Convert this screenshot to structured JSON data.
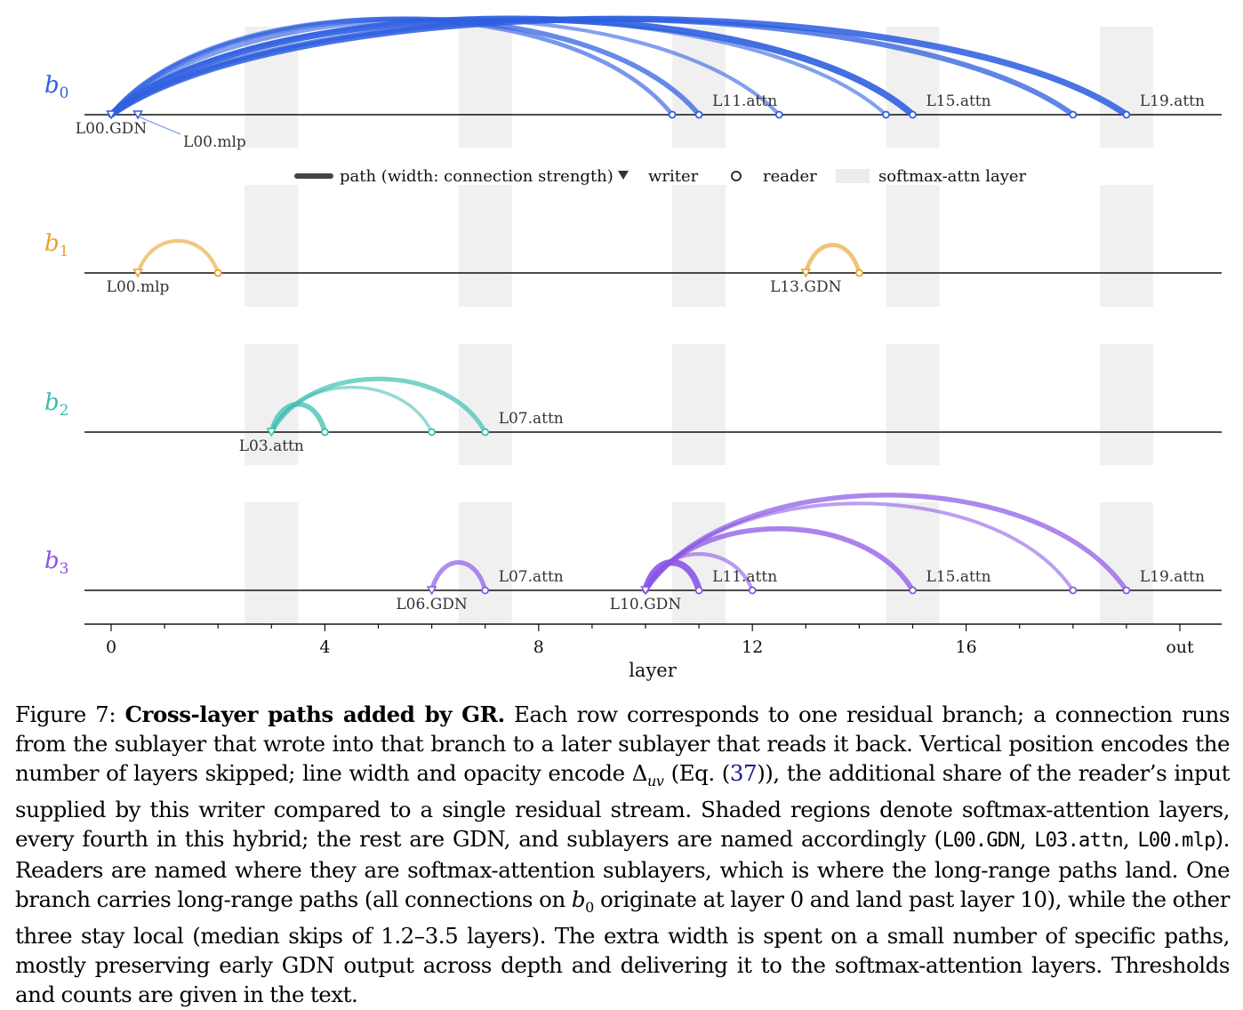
{
  "figure": {
    "legend": {
      "path": "path (width: connection strength)",
      "writer": "writer",
      "reader": "reader",
      "softmax": "softmax-attn layer"
    },
    "axis": {
      "xlabel": "layer",
      "ticks": [
        "0",
        "4",
        "8",
        "12",
        "16",
        "out"
      ],
      "tick_values": [
        0,
        4,
        8,
        12,
        16,
        20
      ]
    },
    "softmax_layers": [
      3,
      7,
      11,
      15,
      19
    ],
    "colors": {
      "b0": "#2f5fe0",
      "b1": "#e8a32c",
      "b2": "#3cbdb0",
      "b3": "#8a55e6",
      "shade": "#f0f0f0",
      "baseline": "#111111"
    }
  },
  "chart_data": {
    "type": "arc-diagram",
    "xlabel": "layer",
    "xlim": [
      0,
      20
    ],
    "rows": [
      {
        "branch": "b0",
        "base": "b",
        "sub": "0",
        "color": "#2f5fe0",
        "writers": [
          0,
          0.5
        ],
        "readers": [
          10.5,
          11,
          12.5,
          14.5,
          15,
          18,
          19
        ],
        "paths": [
          {
            "from": 0,
            "to": 10.5,
            "strength": 0.55
          },
          {
            "from": 0,
            "to": 11,
            "strength": 0.7
          },
          {
            "from": 0,
            "to": 12.5,
            "strength": 0.45
          },
          {
            "from": 0,
            "to": 14.5,
            "strength": 0.45
          },
          {
            "from": 0,
            "to": 15,
            "strength": 1.0
          },
          {
            "from": 0,
            "to": 18,
            "strength": 0.75
          },
          {
            "from": 0,
            "to": 19,
            "strength": 0.95
          }
        ],
        "labels": [
          {
            "text": "L00.GDN",
            "at": 0,
            "pos": "below"
          },
          {
            "text": "L00.mlp",
            "at": 0.5,
            "pos": "below-right"
          },
          {
            "text": "L11.attn",
            "at": 11,
            "pos": "above"
          },
          {
            "text": "L15.attn",
            "at": 15,
            "pos": "above"
          },
          {
            "text": "L19.attn",
            "at": 19,
            "pos": "above"
          }
        ]
      },
      {
        "branch": "b1",
        "base": "b",
        "sub": "1",
        "color": "#e8a32c",
        "writers": [
          0.5,
          13
        ],
        "readers": [
          2,
          14
        ],
        "paths": [
          {
            "from": 0.5,
            "to": 2,
            "strength": 0.45
          },
          {
            "from": 13,
            "to": 14,
            "strength": 0.55
          }
        ],
        "labels": [
          {
            "text": "L00.mlp",
            "at": 0.5,
            "pos": "below"
          },
          {
            "text": "L13.GDN",
            "at": 13,
            "pos": "below"
          }
        ]
      },
      {
        "branch": "b2",
        "base": "b",
        "sub": "2",
        "color": "#3cbdb0",
        "writers": [
          3
        ],
        "readers": [
          4,
          6,
          7
        ],
        "paths": [
          {
            "from": 3,
            "to": 4,
            "strength": 0.7
          },
          {
            "from": 3,
            "to": 6,
            "strength": 0.35
          },
          {
            "from": 3,
            "to": 7,
            "strength": 0.6
          }
        ],
        "labels": [
          {
            "text": "L03.attn",
            "at": 3,
            "pos": "below"
          },
          {
            "text": "L07.attn",
            "at": 7,
            "pos": "above"
          }
        ]
      },
      {
        "branch": "b3",
        "base": "b",
        "sub": "3",
        "color": "#8a55e6",
        "writers": [
          6,
          10
        ],
        "readers": [
          7,
          11,
          12,
          15,
          18,
          19
        ],
        "paths": [
          {
            "from": 6,
            "to": 7,
            "strength": 0.6
          },
          {
            "from": 10,
            "to": 11,
            "strength": 1.0
          },
          {
            "from": 10,
            "to": 12,
            "strength": 0.45
          },
          {
            "from": 10,
            "to": 15,
            "strength": 0.7
          },
          {
            "from": 10,
            "to": 18,
            "strength": 0.4
          },
          {
            "from": 10,
            "to": 19,
            "strength": 0.65
          }
        ],
        "labels": [
          {
            "text": "L06.GDN",
            "at": 6,
            "pos": "below"
          },
          {
            "text": "L07.attn",
            "at": 7,
            "pos": "above"
          },
          {
            "text": "L10.GDN",
            "at": 10,
            "pos": "below"
          },
          {
            "text": "L11.attn",
            "at": 11,
            "pos": "above"
          },
          {
            "text": "L15.attn",
            "at": 15,
            "pos": "above"
          },
          {
            "text": "L19.attn",
            "at": 19,
            "pos": "above"
          }
        ]
      }
    ]
  },
  "caption": {
    "figure_label": "Figure 7: ",
    "title": "Cross-layer paths added by GR.",
    "t1": " Each row corresponds to one residual branch; a connection runs from the sublayer that wrote into that branch to a later sublayer that reads it back. Vertical position encodes the number of layers skipped; line width and opacity encode ",
    "delta": "Δ",
    "delta_sub": "uv",
    "t2": " (Eq. (",
    "eq_ref": "37",
    "t3": ")), the additional share of the reader’s input supplied by this writer compared to a single residual stream. Shaded regions denote softmax-attention layers, every fourth in this hybrid; the rest are GDN, and sublayers are named accordingly (",
    "code1": "L00.GDN",
    "sep1": ", ",
    "code2": "L03.attn",
    "sep2": ", ",
    "code3": "L00.mlp",
    "t4": "). Readers are named where they are softmax-attention sublayers, which is where the long-range paths land. One branch carries long-range paths (all connections on ",
    "b0_base": "b",
    "b0_sub": "0",
    "t5": " originate at layer 0 and land past layer 10), while the other three stay local (median skips of 1.2–3.5 layers). The extra width is spent on a small number of specific paths, mostly preserving early GDN output across depth and delivering it to the softmax-attention layers. Thresholds and counts are given in the text."
  }
}
